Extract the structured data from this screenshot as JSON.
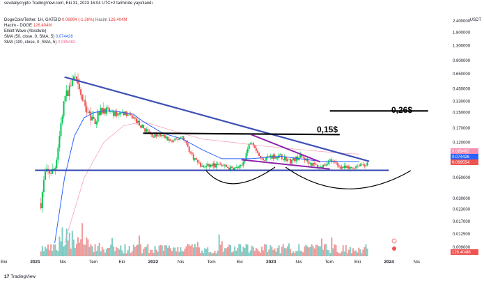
{
  "top_caption": "sevdailycrypto TradingView.com, Eki 31, 2023 16:04 UTC+2 tarihinde yayınlandı",
  "legend": {
    "pair": "DogeCoin/Tether, 1H, GATEIO",
    "pair_change": "0.06994 (-1.38%)",
    "volume_label": "Hacim",
    "volume_value": "126.404M",
    "volume_line": "Hacim - DOGE",
    "volume_line_value": "126.404M",
    "elliott": "Elliott Wave (Absolute)",
    "sma1_label": "SMA (50, close, 0, SMA, 5)",
    "sma1_value": "0.074426",
    "sma2_label": "SMA (100, close, 0, SMA, 5)",
    "sma2_value": "0.089482"
  },
  "currency": "USDT",
  "brand": "TradingView",
  "colors": {
    "up": "#26a69a",
    "up_bright": "#00c853",
    "down": "#ef5350",
    "trend": "#3f51b5",
    "sma1": "#2962ff",
    "sma2": "#f48fb1",
    "purple": "#8e24aa"
  },
  "chart_data": {
    "type": "candlestick",
    "y_scale": "log",
    "y_ticks": [
      "2.400000",
      "1.800000",
      "1.300000",
      "0.900000",
      "0.650000",
      "0.450000",
      "0.330000",
      "0.250000",
      "0.170000",
      "0.120000",
      "0.089482",
      "0.074426",
      "0.069554",
      "0.050000",
      "0.030000",
      "0.023000",
      "0.017000",
      "0.012500",
      "0.009000"
    ],
    "x_ticks": [
      "Eki",
      "2021",
      "Nis",
      "Tem",
      "Eki",
      "2022",
      "Nis",
      "Tem",
      "Eki",
      "2023",
      "Nis",
      "Tem",
      "Eki",
      "2024",
      "Nis"
    ],
    "price_tags": [
      {
        "label": "0.089482",
        "color": "#f48fb1"
      },
      {
        "label": "0.074426",
        "color": "#2962ff"
      },
      {
        "label": "0.069554",
        "color": "#ef5350"
      }
    ],
    "volume_tag": "126.404M",
    "annotations": [
      "0,26$",
      "0,15$"
    ],
    "price_series": [
      {
        "t": "2020-10",
        "p": 0.0026
      },
      {
        "t": "2020-11",
        "p": 0.003
      },
      {
        "t": "2020-12",
        "p": 0.0045
      },
      {
        "t": "2021-01",
        "p": 0.009
      },
      {
        "t": "2021-02",
        "p": 0.055
      },
      {
        "t": "2021-03",
        "p": 0.06
      },
      {
        "t": "2021-04",
        "p": 0.35
      },
      {
        "t": "2021-05",
        "p": 0.6
      },
      {
        "t": "2021-06",
        "p": 0.3
      },
      {
        "t": "2021-07",
        "p": 0.2
      },
      {
        "t": "2021-08",
        "p": 0.28
      },
      {
        "t": "2021-09",
        "p": 0.24
      },
      {
        "t": "2021-10",
        "p": 0.25
      },
      {
        "t": "2021-11",
        "p": 0.22
      },
      {
        "t": "2021-12",
        "p": 0.17
      },
      {
        "t": "2022-01",
        "p": 0.14
      },
      {
        "t": "2022-02",
        "p": 0.14
      },
      {
        "t": "2022-03",
        "p": 0.12
      },
      {
        "t": "2022-04",
        "p": 0.14
      },
      {
        "t": "2022-05",
        "p": 0.085
      },
      {
        "t": "2022-06",
        "p": 0.065
      },
      {
        "t": "2022-07",
        "p": 0.068
      },
      {
        "t": "2022-08",
        "p": 0.068
      },
      {
        "t": "2022-09",
        "p": 0.062
      },
      {
        "t": "2022-10",
        "p": 0.065
      },
      {
        "t": "2022-11",
        "p": 0.13
      },
      {
        "t": "2022-12",
        "p": 0.078
      },
      {
        "t": "2023-01",
        "p": 0.085
      },
      {
        "t": "2023-02",
        "p": 0.085
      },
      {
        "t": "2023-03",
        "p": 0.075
      },
      {
        "t": "2023-04",
        "p": 0.085
      },
      {
        "t": "2023-05",
        "p": 0.072
      },
      {
        "t": "2023-06",
        "p": 0.064
      },
      {
        "t": "2023-07",
        "p": 0.077
      },
      {
        "t": "2023-08",
        "p": 0.066
      },
      {
        "t": "2023-09",
        "p": 0.062
      },
      {
        "t": "2023-10",
        "p": 0.0695
      }
    ],
    "sma50": [
      {
        "t": "2021-03",
        "p": 0.01
      },
      {
        "t": "2021-04",
        "p": 0.05
      },
      {
        "t": "2021-05",
        "p": 0.14
      },
      {
        "t": "2021-06",
        "p": 0.22
      },
      {
        "t": "2021-07",
        "p": 0.25
      },
      {
        "t": "2021-08",
        "p": 0.26
      },
      {
        "t": "2021-09",
        "p": 0.26
      },
      {
        "t": "2021-10",
        "p": 0.25
      },
      {
        "t": "2021-11",
        "p": 0.24
      },
      {
        "t": "2021-12",
        "p": 0.2
      },
      {
        "t": "2022-02",
        "p": 0.15
      },
      {
        "t": "2022-04",
        "p": 0.13
      },
      {
        "t": "2022-06",
        "p": 0.1
      },
      {
        "t": "2022-08",
        "p": 0.08
      },
      {
        "t": "2022-11",
        "p": 0.08
      },
      {
        "t": "2023-02",
        "p": 0.085
      },
      {
        "t": "2023-06",
        "p": 0.075
      },
      {
        "t": "2023-10",
        "p": 0.0744
      }
    ],
    "sma100": [
      {
        "t": "2021-04",
        "p": 0.01
      },
      {
        "t": "2021-06",
        "p": 0.05
      },
      {
        "t": "2021-08",
        "p": 0.12
      },
      {
        "t": "2021-10",
        "p": 0.18
      },
      {
        "t": "2021-12",
        "p": 0.2
      },
      {
        "t": "2022-03",
        "p": 0.16
      },
      {
        "t": "2022-06",
        "p": 0.13
      },
      {
        "t": "2022-09",
        "p": 0.12
      },
      {
        "t": "2022-12",
        "p": 0.11
      },
      {
        "t": "2023-04",
        "p": 0.1
      },
      {
        "t": "2023-08",
        "p": 0.092
      },
      {
        "t": "2023-10",
        "p": 0.0895
      }
    ],
    "trend_lines": [
      {
        "name": "descending",
        "from": {
          "t": "2021-04",
          "p": 0.6
        },
        "to": {
          "t": "2023-11",
          "p": 0.075
        }
      },
      {
        "name": "support",
        "from": {
          "t": "2021-01",
          "p": 0.06
        },
        "to": {
          "t": "2024-01",
          "p": 0.06
        }
      },
      {
        "name": "resistance-0.15",
        "from": {
          "t": "2021-12",
          "p": 0.15
        },
        "to": {
          "t": "2023-08",
          "p": 0.145
        }
      },
      {
        "name": "resistance-0.26",
        "from": {
          "t": "2023-07",
          "p": 0.26
        },
        "to": {
          "t": "2024-05",
          "p": 0.26
        }
      },
      {
        "name": "wedge-upper",
        "from": {
          "t": "2022-11",
          "p": 0.145
        },
        "to": {
          "t": "2023-06",
          "p": 0.074
        }
      },
      {
        "name": "wedge-lower",
        "from": {
          "t": "2022-10",
          "p": 0.078
        },
        "to": {
          "t": "2023-07",
          "p": 0.062
        }
      }
    ]
  }
}
